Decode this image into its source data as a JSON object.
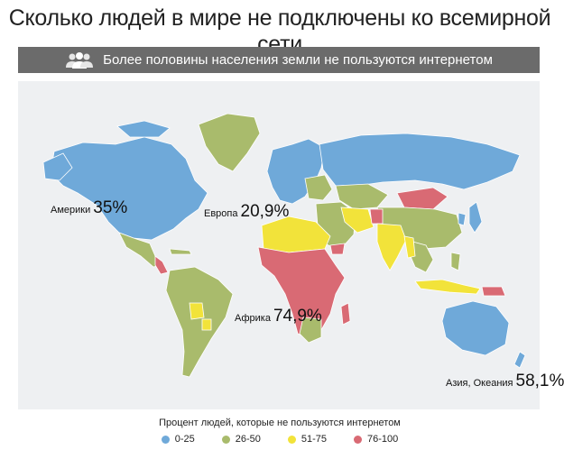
{
  "title": "Сколько людей в мире не подключены ко всемирной сети",
  "banner": {
    "text": "Более половины населения земли не пользуются интернетом",
    "icon": "people-icon"
  },
  "regions": [
    {
      "label": "Америки",
      "value": "35%"
    },
    {
      "label": "Европа",
      "value": "20,9%"
    },
    {
      "label": "Африка",
      "value": "74,9%"
    },
    {
      "label": "Азия, Океания",
      "value": "58,1%"
    }
  ],
  "legend": {
    "title": "Процент людей, которые не пользуются интернетом",
    "items": [
      {
        "label": "0-25",
        "color": "#6fa9d9"
      },
      {
        "label": "26-50",
        "color": "#a9bb6c"
      },
      {
        "label": "51-75",
        "color": "#f2e33a"
      },
      {
        "label": "76-100",
        "color": "#d96a74"
      }
    ]
  },
  "colors": {
    "banner_bg": "#6b6b6b",
    "map_bg": "#eef0f2"
  }
}
